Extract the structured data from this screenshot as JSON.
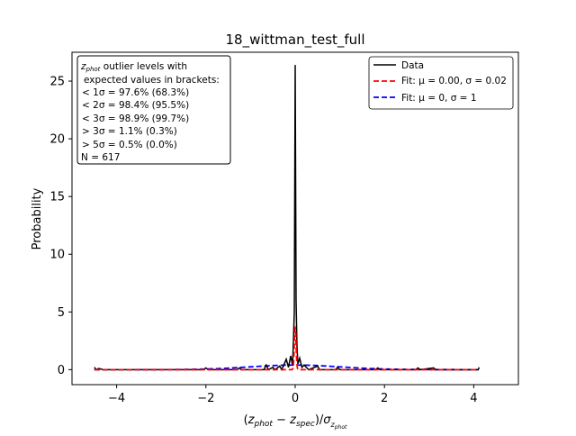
{
  "chart_data": {
    "type": "line",
    "title": "18_wittman_test_full",
    "xlabel": "(z_phot − z_spec)/σ_z_phot",
    "ylabel": "Probability",
    "xlim": [
      -5,
      5
    ],
    "ylim": [
      -1.3,
      27.5
    ],
    "xticks": [
      -4,
      -2,
      0,
      2,
      4
    ],
    "xtick_labels": [
      "−4",
      "−2",
      "0",
      "2",
      "4"
    ],
    "yticks": [
      0,
      5,
      10,
      15,
      20,
      25
    ],
    "ytick_labels": [
      "0",
      "5",
      "10",
      "15",
      "20",
      "25"
    ],
    "grid": false,
    "legend_position": "top-right",
    "legend": [
      {
        "label": "Data",
        "color": "#000000",
        "style": "solid"
      },
      {
        "label": "Fit: μ = 0.00, σ = 0.02",
        "color": "#ff0000",
        "style": "dashed"
      },
      {
        "label": "Fit: μ = 0, σ = 1",
        "color": "#0000ff",
        "style": "dashed"
      }
    ],
    "annotation_lines": [
      "z_phot outlier levels with",
      "expected values in brackets:",
      "< 1σ = 97.6% (68.3%)",
      "< 2σ = 98.4% (95.5%)",
      "< 3σ = 98.9% (99.7%)",
      "> 3σ = 1.1% (0.3%)",
      "> 5σ = 0.5% (0.0%)",
      "N = 617"
    ],
    "series": [
      {
        "name": "Data",
        "color": "#000000",
        "points": [
          [
            -4.5,
            0.2
          ],
          [
            -4.45,
            0
          ],
          [
            -4.4,
            0.1
          ],
          [
            -4.3,
            0
          ],
          [
            -2.05,
            0
          ],
          [
            -2.0,
            0.15
          ],
          [
            -1.95,
            0
          ],
          [
            -1.3,
            0
          ],
          [
            -1.25,
            0.15
          ],
          [
            -1.2,
            0
          ],
          [
            -0.7,
            0
          ],
          [
            -0.65,
            0.4
          ],
          [
            -0.6,
            0
          ],
          [
            -0.5,
            0.2
          ],
          [
            -0.45,
            0
          ],
          [
            -0.35,
            0.3
          ],
          [
            -0.3,
            0
          ],
          [
            -0.2,
            0.9
          ],
          [
            -0.15,
            0.2
          ],
          [
            -0.1,
            1.2
          ],
          [
            -0.06,
            0.4
          ],
          [
            -0.04,
            2.5
          ],
          [
            -0.02,
            5.0
          ],
          [
            0,
            26.4
          ],
          [
            0.02,
            6.0
          ],
          [
            0.04,
            2.0
          ],
          [
            0.06,
            0.5
          ],
          [
            0.1,
            1.0
          ],
          [
            0.15,
            0.2
          ],
          [
            0.2,
            0.4
          ],
          [
            0.3,
            0
          ],
          [
            0.5,
            0.3
          ],
          [
            0.55,
            0
          ],
          [
            0.9,
            0
          ],
          [
            0.95,
            0.2
          ],
          [
            1.0,
            0
          ],
          [
            1.8,
            0
          ],
          [
            1.85,
            0.15
          ],
          [
            1.9,
            0
          ],
          [
            2.7,
            0
          ],
          [
            2.75,
            0.15
          ],
          [
            2.8,
            0
          ],
          [
            3.1,
            0.15
          ],
          [
            3.15,
            0
          ],
          [
            4.1,
            0
          ],
          [
            4.12,
            0.2
          ]
        ]
      },
      {
        "name": "Fit: μ = 0.00, σ = 0.02",
        "color": "#ff0000",
        "mu": 0.0,
        "sigma": 0.02,
        "peak": 3.6
      },
      {
        "name": "Fit: μ = 0, σ = 1",
        "color": "#0000ff",
        "mu": 0,
        "sigma": 1,
        "peak": 0.4
      }
    ]
  }
}
